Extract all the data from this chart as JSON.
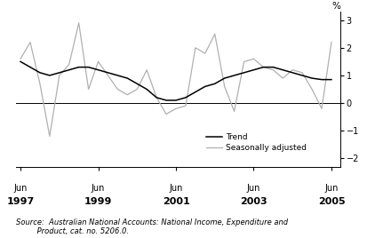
{
  "trend": [
    1.5,
    1.3,
    1.1,
    1.0,
    1.1,
    1.2,
    1.3,
    1.3,
    1.2,
    1.1,
    1.0,
    0.9,
    0.7,
    0.5,
    0.2,
    0.1,
    0.1,
    0.2,
    0.4,
    0.6,
    0.7,
    0.9,
    1.0,
    1.1,
    1.2,
    1.3,
    1.3,
    1.2,
    1.1,
    1.0,
    0.9,
    0.85,
    0.85
  ],
  "seasonally_adjusted": [
    1.6,
    2.2,
    0.7,
    -1.2,
    1.0,
    1.4,
    2.9,
    0.5,
    1.5,
    1.0,
    0.5,
    0.3,
    0.5,
    1.2,
    0.2,
    -0.4,
    -0.2,
    -0.1,
    2.0,
    1.8,
    2.5,
    0.6,
    -0.3,
    1.5,
    1.6,
    1.3,
    1.2,
    0.9,
    1.2,
    1.1,
    0.5,
    -0.2,
    2.2
  ],
  "yticks": [
    -2,
    -1,
    0,
    1,
    2,
    3
  ],
  "ylim": [
    -2.3,
    3.3
  ],
  "xlim": [
    1997.25,
    2005.6
  ],
  "xtick_years": [
    1997,
    1999,
    2001,
    2003,
    2005
  ],
  "trend_color": "#000000",
  "seasonal_color": "#b0b0b0",
  "zero_line_color": "#000000",
  "source_text": "Source:  Australian National Accounts: National Income, Expenditure and\n         Product, cat. no. 5206.0.",
  "ylabel_text": "%",
  "legend_trend": "Trend",
  "legend_seasonal": "Seasonally adjusted",
  "bg_color": "#ffffff"
}
